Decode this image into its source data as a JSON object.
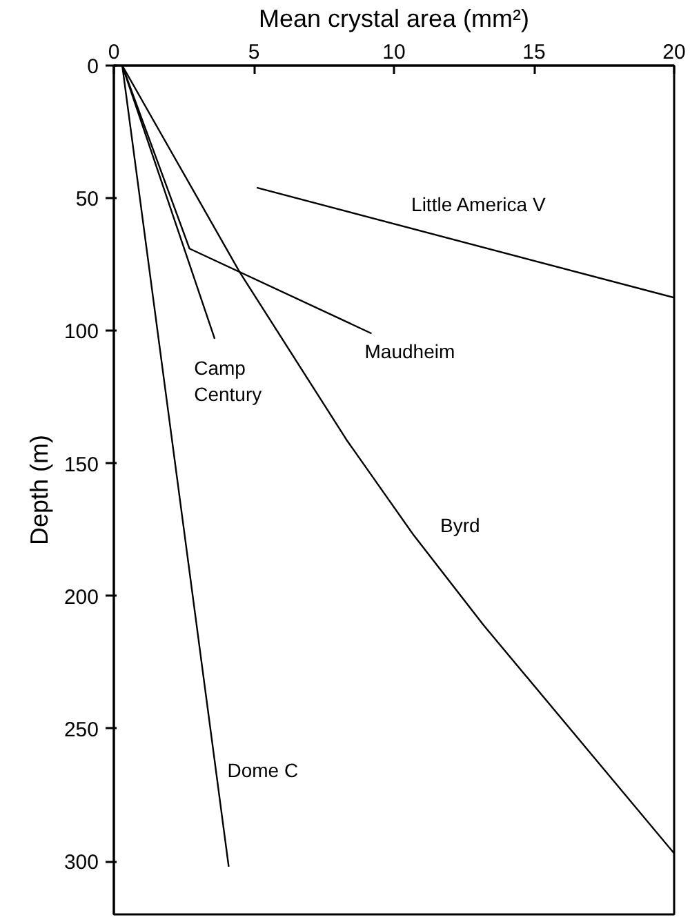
{
  "chart_data": {
    "type": "line",
    "xlabel": "Mean crystal area (mm²)",
    "ylabel": "Depth (m)",
    "xlim": [
      0,
      20
    ],
    "xticks": [
      0,
      5,
      10,
      15,
      20
    ],
    "ylim": [
      320,
      0
    ],
    "yticks": [
      0,
      50,
      100,
      150,
      200,
      250,
      300
    ],
    "grid": false,
    "marker": "none",
    "line_style": "solid",
    "series": [
      {
        "name": "Little America V",
        "color": "#000000",
        "x": [
          5.1,
          20
        ],
        "values": [
          46,
          87.5
        ]
      },
      {
        "name": "Maudheim",
        "color": "#000000",
        "x": [
          0.3,
          2.7,
          9.2
        ],
        "values": [
          0,
          69,
          101
        ]
      },
      {
        "name": "Camp\nCentury",
        "color": "#000000",
        "x": [
          0.3,
          3.6
        ],
        "values": [
          0,
          103
        ]
      },
      {
        "name": "Byrd",
        "color": "#000000",
        "x": [
          0.3,
          4.5,
          8.3,
          10.7,
          13.2,
          20
        ],
        "values": [
          0,
          78,
          141,
          177,
          211,
          297
        ]
      },
      {
        "name": "Dome C",
        "color": "#000000",
        "x": [
          0.3,
          4.1
        ],
        "values": [
          0,
          302
        ]
      }
    ]
  }
}
